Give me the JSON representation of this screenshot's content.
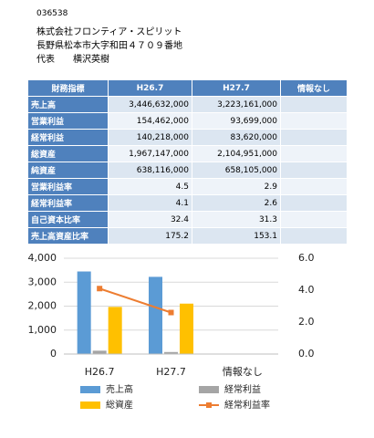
{
  "header": {
    "code": "036538",
    "company": "株式会社フロンティア・スピリット",
    "address": "長野県松本市大字和田４７０９番地",
    "representative": "代表　　横沢英樹"
  },
  "table": {
    "header": [
      "財務指標",
      "H26.7",
      "H27.7",
      "情報なし"
    ],
    "rows": [
      [
        "売上高",
        "3,446,632,000",
        "3,223,161,000"
      ],
      [
        "営業利益",
        "154,462,000",
        "93,699,000"
      ],
      [
        "経常利益",
        "140,218,000",
        "83,620,000"
      ],
      [
        "総資産",
        "1,967,147,000",
        "2,104,951,000"
      ],
      [
        "純資産",
        "638,116,000",
        "658,105,000"
      ],
      [
        "営業利益率",
        "4.5",
        "2.9"
      ],
      [
        "経常利益率",
        "4.1",
        "2.6"
      ],
      [
        "自己資本比率",
        "32.4",
        "31.3"
      ],
      [
        "売上高資産比率",
        "175.2",
        "153.1"
      ]
    ]
  },
  "chart_data": {
    "type": "bar",
    "categories": [
      "H26.7",
      "H27.7",
      "情報なし"
    ],
    "series": [
      {
        "name": "売上高",
        "color": "#5b9bd5",
        "values": [
          3447,
          3223,
          null
        ]
      },
      {
        "name": "経常利益",
        "color": "#a5a5a5",
        "values": [
          140,
          84,
          null
        ]
      },
      {
        "name": "総資産",
        "color": "#ffc000",
        "values": [
          1967,
          2105,
          null
        ]
      },
      {
        "name": "経常利益率",
        "color": "#ed7d31",
        "type": "line",
        "axis": "y2",
        "values": [
          4.1,
          2.6,
          null
        ]
      }
    ],
    "ylim": [
      0,
      4000
    ],
    "yticks": [
      0,
      {
        "value": 1000,
        "label": "1,000"
      },
      {
        "value": 2000,
        "label": "2,000"
      },
      {
        "value": 3000,
        "label": "3,000"
      },
      {
        "value": 4000,
        "label": "4,000"
      }
    ],
    "y2lim": [
      0,
      6
    ],
    "y2ticks": [
      {
        "value": 0,
        "label": "0.0"
      },
      {
        "value": 2,
        "label": "2.0"
      },
      {
        "value": 4,
        "label": "4.0"
      },
      {
        "value": 6,
        "label": "6.0"
      }
    ],
    "grid": true
  }
}
